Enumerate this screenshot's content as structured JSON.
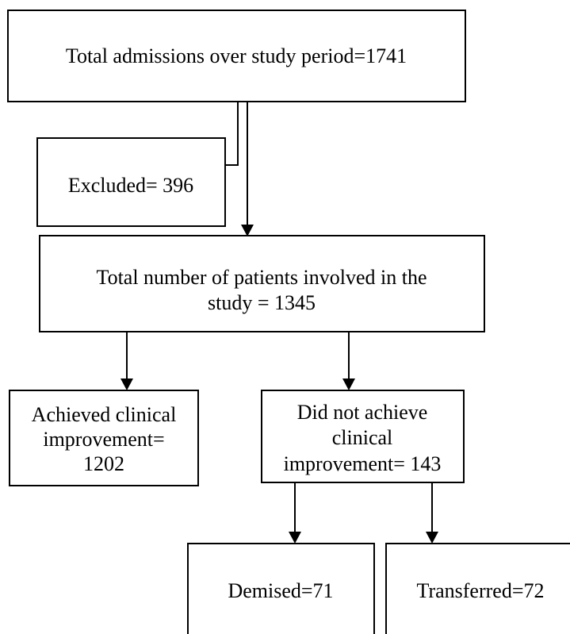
{
  "nodes": [
    {
      "lines": [
        "Total admissions over study period=1741"
      ]
    },
    {
      "lines": [
        "Excluded= 396"
      ]
    },
    {
      "lines": [
        "Total number of patients involved in the",
        "study  = 1345"
      ]
    },
    {
      "lines": [
        "Achieved clinical",
        "improvement=",
        "1202"
      ]
    },
    {
      "lines": [
        "Did not achieve",
        "clinical",
        "improvement= 143"
      ]
    },
    {
      "lines": [
        "Demised=71"
      ]
    },
    {
      "lines": [
        "Transferred=72"
      ]
    }
  ]
}
